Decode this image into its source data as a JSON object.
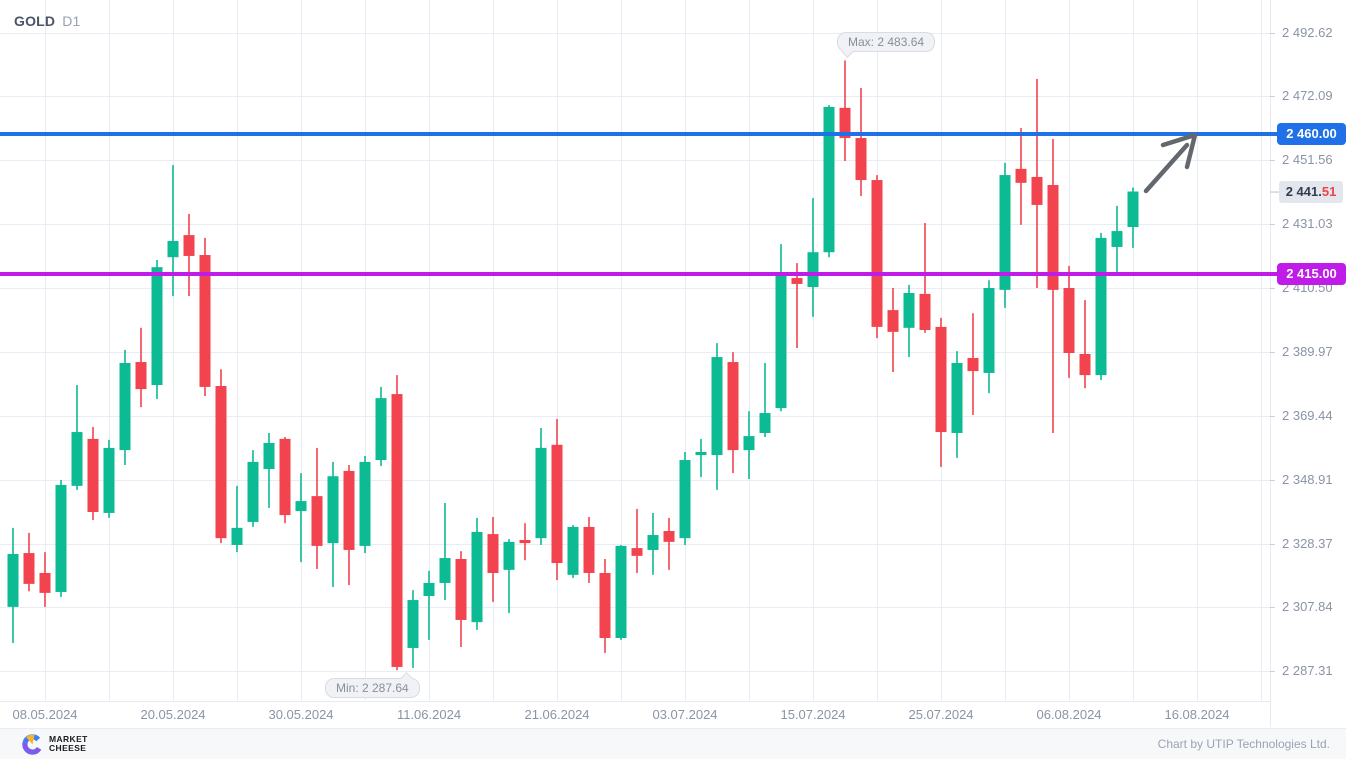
{
  "header": {
    "symbol": "GOLD",
    "timeframe": "D1"
  },
  "chart_data": {
    "type": "candlestick",
    "symbol": "GOLD",
    "timeframe": "D1",
    "colors": {
      "up": "#0cba94",
      "down": "#f2444e",
      "grid": "#e8ecf4",
      "axis_text": "#8a93a6"
    },
    "y_axis": {
      "labels": [
        "2 492.62",
        "2 472.09",
        "2 451.56",
        "2 431.03",
        "2 410.50",
        "2 389.97",
        "2 369.44",
        "2 348.91",
        "2 328.37",
        "2 307.84",
        "2 287.31"
      ]
    },
    "x_axis": {
      "labels": [
        "08.05.2024",
        "20.05.2024",
        "30.05.2024",
        "11.06.2024",
        "21.06.2024",
        "03.07.2024",
        "15.07.2024",
        "25.07.2024",
        "06.08.2024",
        "16.08.2024"
      ]
    },
    "levels": [
      {
        "value": 2460.0,
        "label": "2 460.00",
        "color": "#2071e8"
      },
      {
        "value": 2415.0,
        "label": "2 415.00",
        "color": "#bf1ce8"
      }
    ],
    "current_price": {
      "value": 2441.51,
      "main": "2 441.",
      "fraction": "51"
    },
    "annotations": {
      "max_value": 2483.64,
      "max_label": "Max: 2 483.64",
      "min_value": 2287.64,
      "min_label": "Min: 2 287.64",
      "trend_arrow_points_to_level": 2460.0
    },
    "ohlc_columns": [
      "date",
      "open",
      "high",
      "low",
      "close"
    ],
    "candles": [
      [
        "06.05.2024",
        2308.0,
        2333.4,
        2296.4,
        2325.0
      ],
      [
        "07.05.2024",
        2325.3,
        2331.8,
        2313.0,
        2315.4
      ],
      [
        "08.05.2024",
        2318.9,
        2325.6,
        2308.0,
        2312.5
      ],
      [
        "09.05.2024",
        2312.8,
        2348.8,
        2311.2,
        2347.2
      ],
      [
        "10.05.2024",
        2346.9,
        2379.3,
        2345.6,
        2364.2
      ],
      [
        "13.05.2024",
        2362.0,
        2365.8,
        2335.9,
        2338.5
      ],
      [
        "14.05.2024",
        2338.2,
        2361.7,
        2336.6,
        2359.1
      ],
      [
        "15.05.2024",
        2358.4,
        2390.6,
        2353.6,
        2386.4
      ],
      [
        "16.05.2024",
        2386.7,
        2397.7,
        2372.2,
        2378.0
      ],
      [
        "17.05.2024",
        2379.3,
        2419.5,
        2374.8,
        2417.2
      ],
      [
        "20.05.2024",
        2420.4,
        2450.0,
        2407.9,
        2425.6
      ],
      [
        "21.05.2024",
        2427.5,
        2434.3,
        2407.9,
        2420.8
      ],
      [
        "22.05.2024",
        2421.1,
        2426.6,
        2375.8,
        2378.7
      ],
      [
        "23.05.2024",
        2379.0,
        2384.4,
        2328.5,
        2330.1
      ],
      [
        "24.05.2024",
        2327.9,
        2346.9,
        2325.6,
        2333.4
      ],
      [
        "27.05.2024",
        2335.3,
        2358.4,
        2333.7,
        2354.6
      ],
      [
        "28.05.2024",
        2352.3,
        2363.9,
        2339.8,
        2360.7
      ],
      [
        "29.05.2024",
        2362.0,
        2362.6,
        2334.9,
        2337.5
      ],
      [
        "30.05.2024",
        2338.8,
        2351.0,
        2322.4,
        2342.0
      ],
      [
        "31.05.2024",
        2343.6,
        2359.1,
        2320.2,
        2327.6
      ],
      [
        "03.06.2024",
        2328.5,
        2354.6,
        2314.4,
        2350.0
      ],
      [
        "04.06.2024",
        2351.7,
        2353.6,
        2315.0,
        2326.3
      ],
      [
        "05.06.2024",
        2327.6,
        2356.5,
        2325.3,
        2354.6
      ],
      [
        "06.06.2024",
        2355.2,
        2378.7,
        2353.3,
        2375.1
      ],
      [
        "07.06.2024",
        2376.4,
        2382.5,
        2287.64,
        2288.7
      ],
      [
        "10.06.2024",
        2294.8,
        2313.4,
        2288.4,
        2310.2
      ],
      [
        "11.06.2024",
        2311.5,
        2319.6,
        2297.4,
        2315.7
      ],
      [
        "12.06.2024",
        2315.7,
        2341.4,
        2310.2,
        2323.7
      ],
      [
        "13.06.2024",
        2323.4,
        2325.9,
        2295.1,
        2303.8
      ],
      [
        "14.06.2024",
        2303.1,
        2336.6,
        2300.6,
        2332.1
      ],
      [
        "17.06.2024",
        2331.4,
        2336.9,
        2309.6,
        2318.9
      ],
      [
        "18.06.2024",
        2319.9,
        2329.8,
        2306.0,
        2328.9
      ],
      [
        "19.06.2024",
        2329.5,
        2334.9,
        2323.0,
        2328.5
      ],
      [
        "20.06.2024",
        2330.1,
        2365.5,
        2327.9,
        2359.1
      ],
      [
        "21.06.2024",
        2360.1,
        2368.4,
        2316.6,
        2322.1
      ],
      [
        "24.06.2024",
        2318.3,
        2334.3,
        2317.3,
        2333.7
      ],
      [
        "25.06.2024",
        2333.7,
        2336.9,
        2315.7,
        2318.9
      ],
      [
        "26.06.2024",
        2318.9,
        2323.4,
        2293.2,
        2298.0
      ],
      [
        "27.06.2024",
        2298.0,
        2327.9,
        2297.4,
        2327.6
      ],
      [
        "28.06.2024",
        2326.9,
        2339.5,
        2318.9,
        2324.4
      ],
      [
        "01.07.2024",
        2326.3,
        2338.2,
        2318.3,
        2331.1
      ],
      [
        "02.07.2024",
        2332.4,
        2336.6,
        2319.9,
        2328.9
      ],
      [
        "03.07.2024",
        2330.1,
        2357.8,
        2327.9,
        2355.2
      ],
      [
        "04.07.2024",
        2356.8,
        2362.0,
        2349.7,
        2357.8
      ],
      [
        "05.07.2024",
        2356.8,
        2392.8,
        2345.6,
        2388.3
      ],
      [
        "08.07.2024",
        2386.7,
        2389.9,
        2351.0,
        2358.4
      ],
      [
        "09.07.2024",
        2358.4,
        2370.9,
        2349.1,
        2362.9
      ],
      [
        "10.07.2024",
        2363.9,
        2386.4,
        2362.6,
        2370.3
      ],
      [
        "11.07.2024",
        2371.9,
        2424.6,
        2370.9,
        2414.7
      ],
      [
        "12.07.2024",
        2413.7,
        2418.5,
        2391.2,
        2411.8
      ],
      [
        "15.07.2024",
        2410.8,
        2439.4,
        2401.2,
        2422.0
      ],
      [
        "16.07.2024",
        2422.0,
        2469.3,
        2420.4,
        2468.7
      ],
      [
        "17.07.2024",
        2468.4,
        2483.64,
        2451.3,
        2458.7
      ],
      [
        "18.07.2024",
        2458.7,
        2474.8,
        2440.1,
        2445.2
      ],
      [
        "19.07.2024",
        2445.2,
        2446.8,
        2394.4,
        2398.0
      ],
      [
        "22.07.2024",
        2403.4,
        2410.5,
        2383.5,
        2396.4
      ],
      [
        "23.07.2024",
        2397.7,
        2411.5,
        2388.3,
        2408.9
      ],
      [
        "24.07.2024",
        2408.6,
        2431.4,
        2396.1,
        2397.0
      ],
      [
        "25.07.2024",
        2398.0,
        2400.9,
        2353.0,
        2364.2
      ],
      [
        "26.07.2024",
        2363.9,
        2390.2,
        2355.9,
        2386.4
      ],
      [
        "29.07.2024",
        2388.0,
        2402.4,
        2369.7,
        2383.8
      ],
      [
        "30.07.2024",
        2383.2,
        2413.0,
        2376.7,
        2410.5
      ],
      [
        "31.07.2024",
        2409.9,
        2450.7,
        2404.1,
        2446.8
      ],
      [
        "01.08.2024",
        2448.8,
        2461.9,
        2430.8,
        2444.3
      ],
      [
        "02.08.2024",
        2446.2,
        2477.7,
        2410.5,
        2437.2
      ],
      [
        "05.08.2024",
        2443.6,
        2458.4,
        2363.9,
        2409.9
      ],
      [
        "06.08.2024",
        2410.5,
        2417.6,
        2381.6,
        2389.6
      ],
      [
        "07.08.2024",
        2389.3,
        2406.6,
        2378.3,
        2382.5
      ],
      [
        "08.08.2024",
        2382.5,
        2428.2,
        2380.9,
        2426.6
      ],
      [
        "09.08.2024",
        2423.7,
        2436.9,
        2415.3,
        2428.8
      ],
      [
        "12.08.2024",
        2430.1,
        2442.8,
        2423.4,
        2441.51
      ]
    ]
  },
  "footer": {
    "brand_line1": "MARKET",
    "brand_line2": "CHEESE",
    "credit": "Chart by UTIP Technologies Ltd."
  }
}
